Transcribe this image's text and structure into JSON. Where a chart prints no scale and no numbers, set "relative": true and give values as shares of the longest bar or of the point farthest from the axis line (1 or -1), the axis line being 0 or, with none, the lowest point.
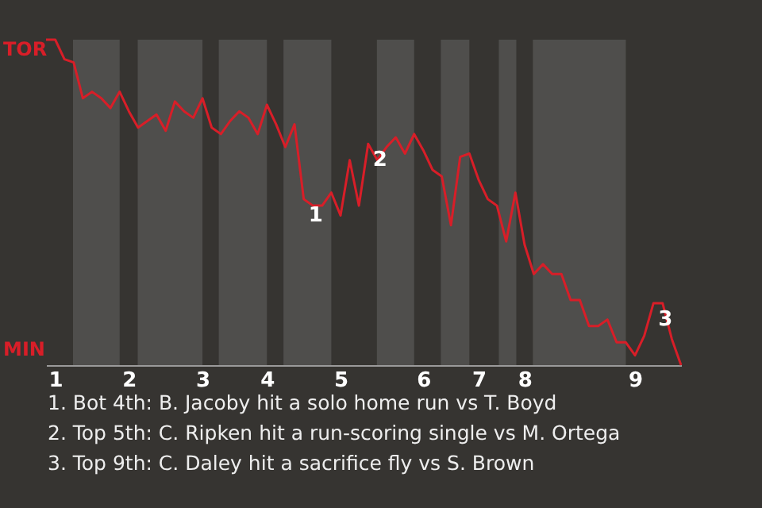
{
  "chart_data": {
    "type": "line",
    "relative": true,
    "categories": [
      null,
      "1",
      null,
      null,
      null,
      null,
      null,
      null,
      null,
      "2",
      null,
      null,
      null,
      null,
      null,
      null,
      null,
      "3",
      null,
      null,
      null,
      null,
      null,
      null,
      "4",
      null,
      null,
      null,
      null,
      null,
      null,
      null,
      "5",
      null,
      null,
      null,
      null,
      null,
      null,
      null,
      null,
      "6",
      null,
      null,
      null,
      null,
      null,
      "7",
      null,
      null,
      null,
      null,
      "8",
      null,
      null,
      null,
      null,
      null,
      null,
      null,
      null,
      null,
      null,
      null,
      "9",
      null,
      null,
      null,
      null,
      null
    ],
    "series": [
      {
        "color": "#d81e28",
        "values": [
          1,
          1,
          0.94,
          0.93,
          0.82,
          0.84,
          0.82,
          0.79,
          0.84,
          0.78,
          0.73,
          0.75,
          0.77,
          0.72,
          0.81,
          0.78,
          0.76,
          0.82,
          0.73,
          0.71,
          0.75,
          0.78,
          0.76,
          0.71,
          0.8,
          0.74,
          0.67,
          0.74,
          0.51,
          0.49,
          0.49,
          0.53,
          0.46,
          0.63,
          0.49,
          0.68,
          0.63,
          0.67,
          0.7,
          0.65,
          0.71,
          0.66,
          0.6,
          0.58,
          0.43,
          0.64,
          0.65,
          0.57,
          0.51,
          0.49,
          0.38,
          0.53,
          0.37,
          0.28,
          0.31,
          0.28,
          0.28,
          0.2,
          0.2,
          0.12,
          0.12,
          0.14,
          0.07,
          0.07,
          0.03,
          0.09,
          0.19,
          0.19,
          0.08,
          0
        ]
      }
    ],
    "annotations": [
      "TOR",
      "MIN",
      {
        "text": "1",
        "y": 0.51
      },
      {
        "text": "2",
        "y": 0.68
      },
      {
        "text": "3",
        "y": 0.19
      },
      "1. Bot 4th: B. Jacoby hit a solo home run vs T. Boyd",
      "2. Top 5th: C. Ripken hit a run-scoring single vs M. Ortega",
      "3. Top 9th: C. Daley hit a sacrifice fly vs S. Brown"
    ]
  }
}
